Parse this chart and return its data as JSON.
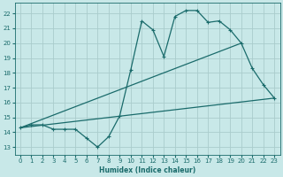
{
  "xlabel": "Humidex (Indice chaleur)",
  "xlim": [
    -0.5,
    23.5
  ],
  "ylim": [
    12.5,
    22.7
  ],
  "xticks": [
    0,
    1,
    2,
    3,
    4,
    5,
    6,
    7,
    8,
    9,
    10,
    11,
    12,
    13,
    14,
    15,
    16,
    17,
    18,
    19,
    20,
    21,
    22,
    23
  ],
  "yticks": [
    13,
    14,
    15,
    16,
    17,
    18,
    19,
    20,
    21,
    22
  ],
  "bg_color": "#c8e8e8",
  "grid_color": "#aacccc",
  "line_color": "#1a6b6b",
  "line1_x": [
    0,
    1,
    2,
    3,
    4,
    5,
    6,
    7,
    8,
    9,
    10,
    11,
    12,
    13,
    14,
    15,
    16,
    17,
    18,
    19,
    20,
    21,
    22,
    23
  ],
  "line1_y": [
    14.3,
    14.5,
    14.5,
    14.2,
    14.2,
    14.2,
    13.6,
    13.0,
    13.7,
    15.1,
    18.2,
    21.5,
    20.9,
    19.1,
    21.8,
    22.2,
    22.2,
    21.4,
    21.5,
    20.9,
    20.0,
    18.3,
    17.2,
    16.3
  ],
  "line2_x": [
    0,
    20
  ],
  "line2_y": [
    14.3,
    20.0
  ],
  "line3_x": [
    0,
    23
  ],
  "line3_y": [
    14.3,
    16.3
  ]
}
